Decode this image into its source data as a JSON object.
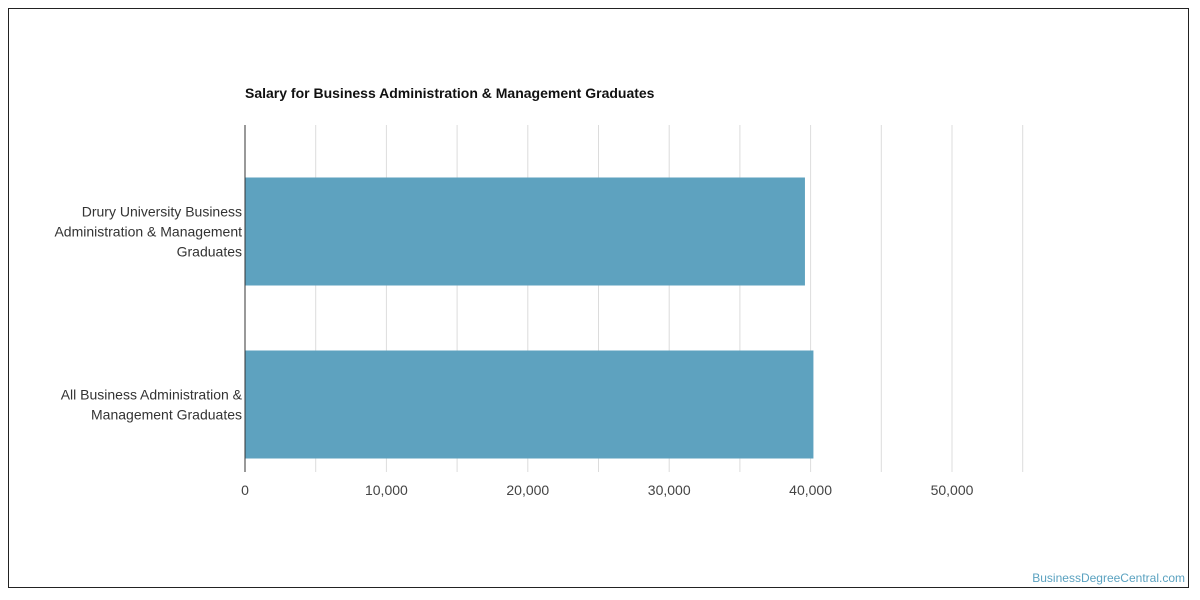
{
  "chart_data": {
    "type": "bar",
    "orientation": "horizontal",
    "title": "Salary for Business Administration & Management Graduates",
    "categories": [
      [
        "Drury University Business",
        "Administration & Management",
        "Graduates"
      ],
      [
        "All Business Administration &",
        "Management Graduates"
      ]
    ],
    "values": [
      39600,
      40200
    ],
    "xlim": [
      0,
      55000
    ],
    "xticks": [
      0,
      10000,
      20000,
      30000,
      40000,
      50000
    ],
    "xtick_labels": [
      "0",
      "10,000",
      "20,000",
      "30,000",
      "40,000",
      "50,000"
    ],
    "grid": true,
    "bar_color": "#5ea2bf"
  },
  "watermark": "BusinessDegreeCentral.com"
}
